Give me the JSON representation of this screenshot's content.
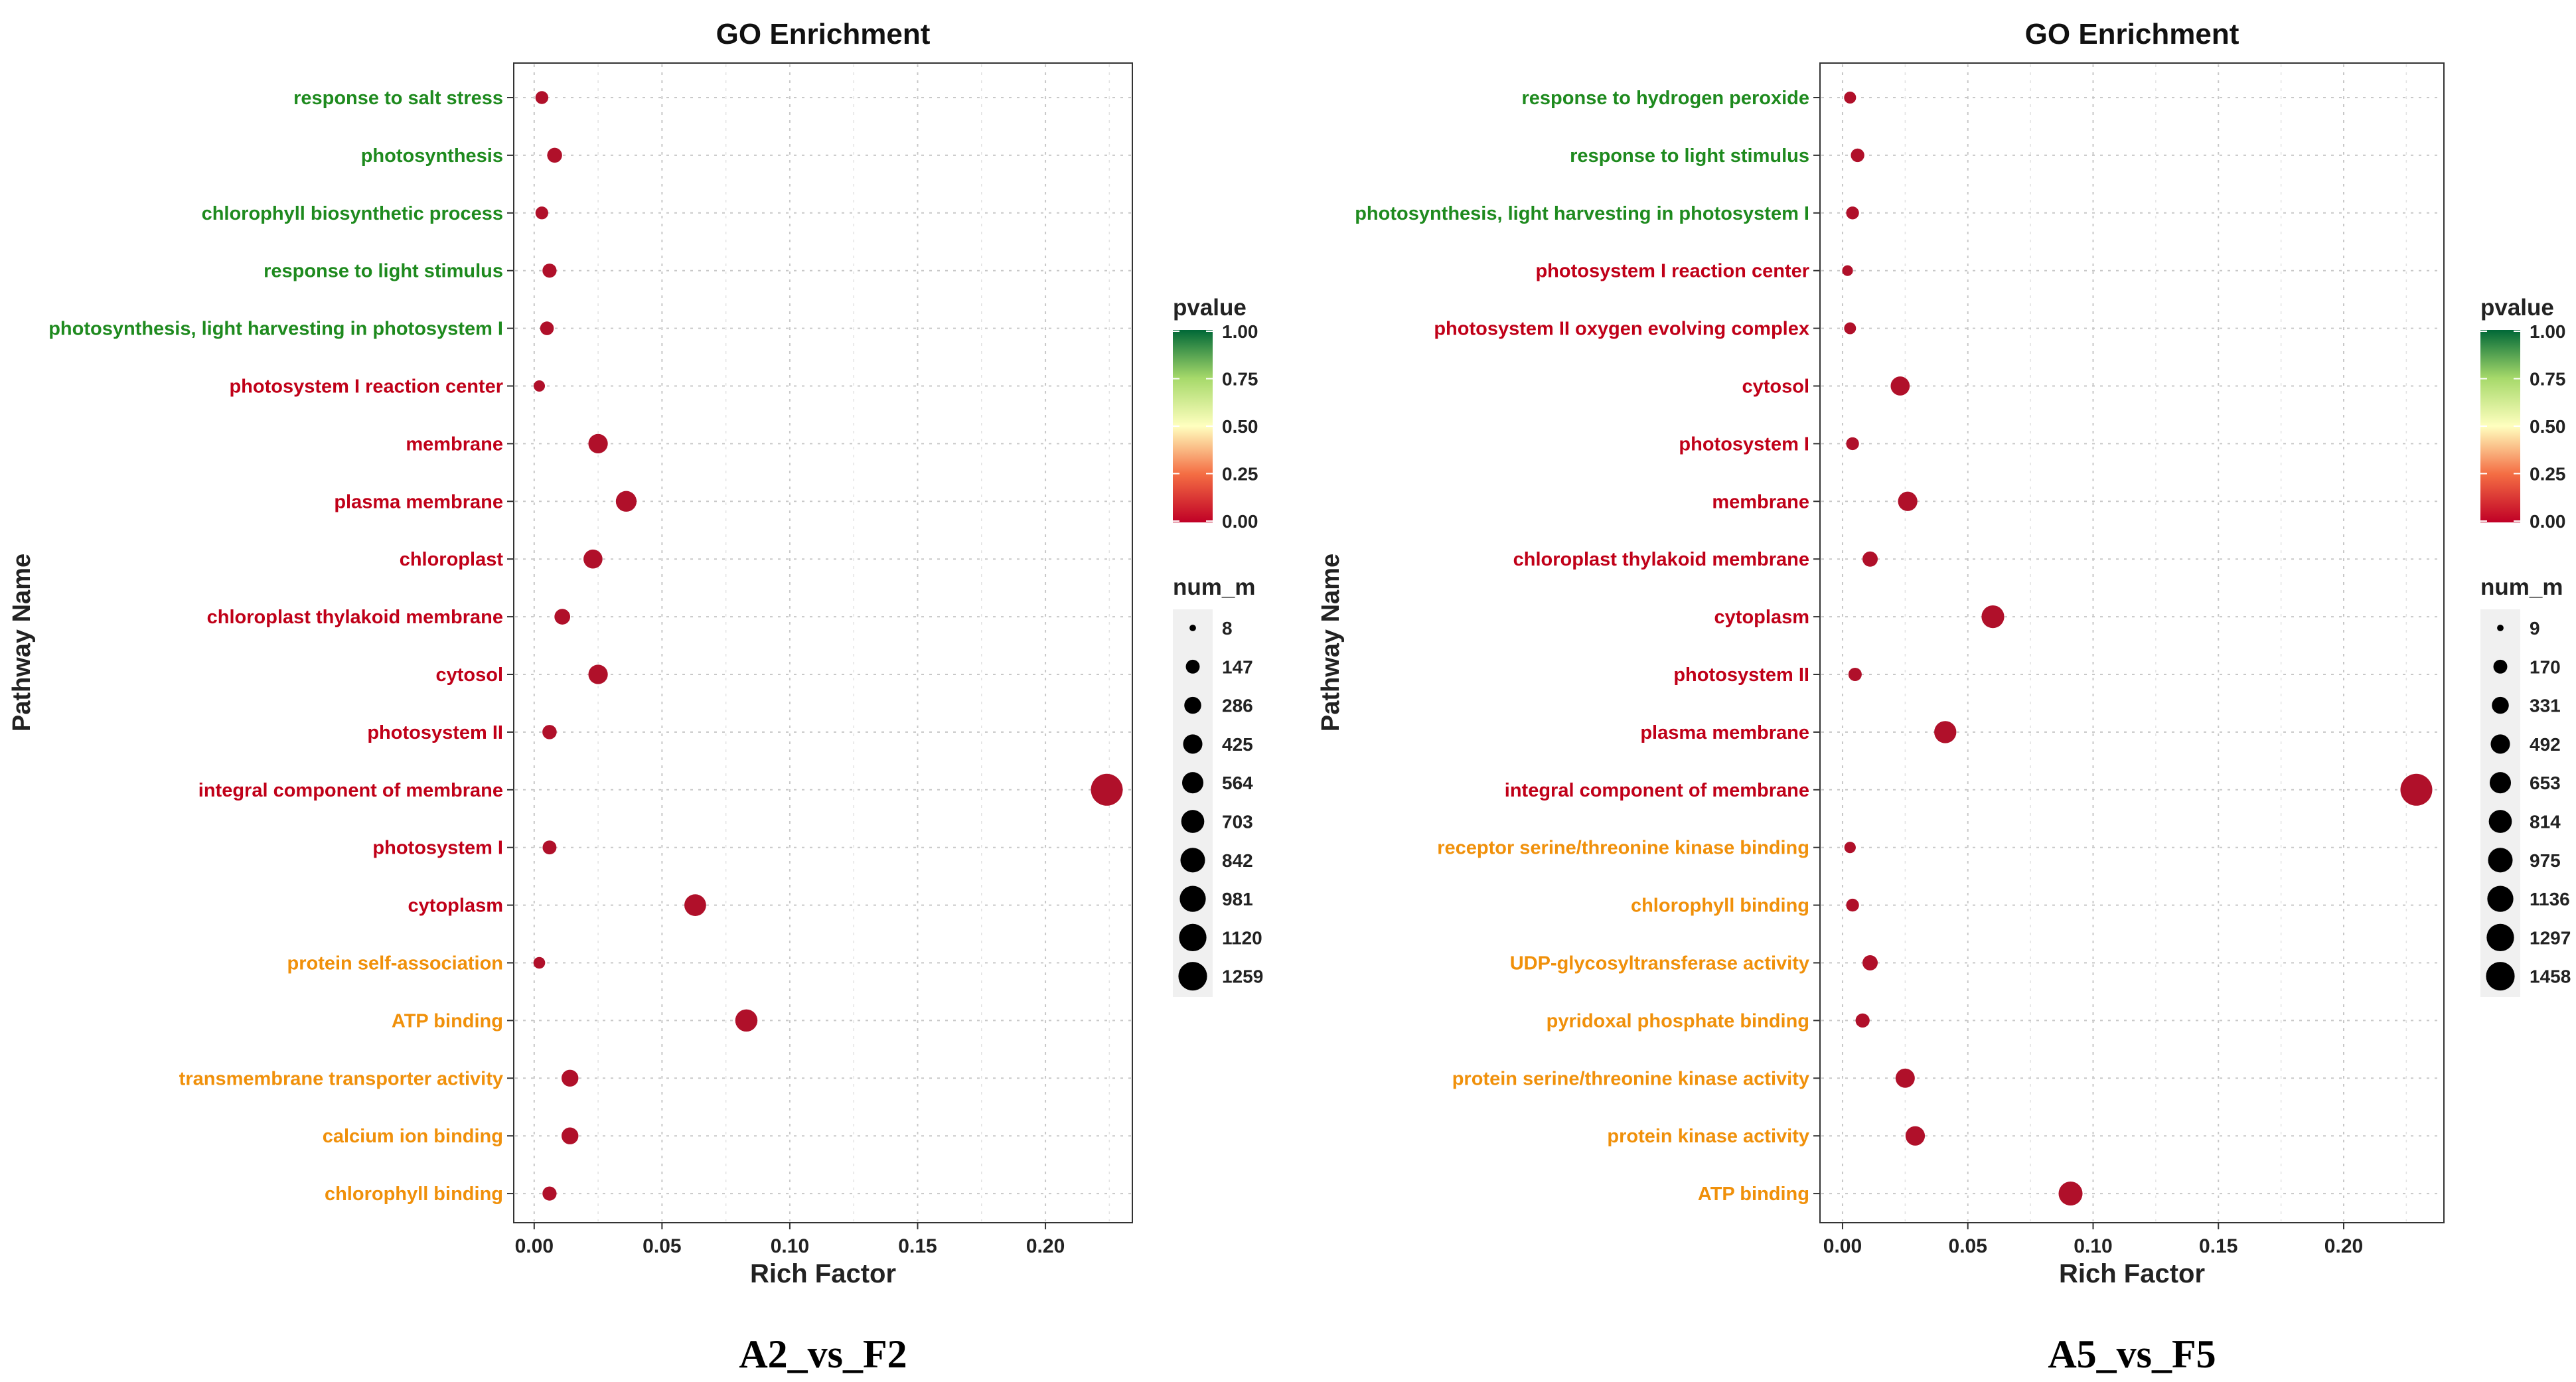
{
  "colors": {
    "label_bp": "#1e8a1e",
    "label_cc": "#c00018",
    "label_mf": "#f0900a",
    "dot": "#b0102a",
    "grid": "#c8c8c8",
    "gradient_top": "#006837",
    "gradient_mid_high": "#a6d96a",
    "gradient_mid": "#ffffbf",
    "gradient_mid_low": "#f46d43",
    "gradient_bottom": "#c00026"
  },
  "chart_data": [
    {
      "type": "scatter",
      "title": "GO Enrichment",
      "xlabel": "Rich Factor",
      "ylabel": "Pathway Name",
      "caption": "A2_vs_F2",
      "xlim": [
        -0.008,
        0.234
      ],
      "x_ticks": [
        0.0,
        0.05,
        0.1,
        0.15,
        0.2
      ],
      "x_tick_labels": [
        "0.00",
        "0.05",
        "0.10",
        "0.15",
        "0.20"
      ],
      "legend_color_title": "pvalue",
      "legend_color_labels": [
        "1.00",
        "0.75",
        "0.50",
        "0.25",
        "0.00"
      ],
      "legend_size_title": "num_m",
      "legend_size_labels": [
        "8",
        "147",
        "286",
        "425",
        "564",
        "703",
        "842",
        "981",
        "1120",
        "1259"
      ],
      "size_range": [
        8,
        1259
      ],
      "categories": [
        "response to salt stress",
        "photosynthesis",
        "chlorophyll biosynthetic process",
        "response to light stimulus",
        "photosynthesis, light harvesting in photosystem I",
        "photosystem I reaction center",
        "membrane",
        "plasma membrane",
        "chloroplast",
        "chloroplast thylakoid membrane",
        "cytosol",
        "photosystem II",
        "integral component of membrane",
        "photosystem I",
        "cytoplasm",
        "protein self-association",
        "ATP binding",
        "transmembrane transporter activity",
        "calcium ion binding",
        "chlorophyll binding"
      ],
      "ontology": [
        "BP",
        "BP",
        "BP",
        "BP",
        "BP",
        "CC",
        "CC",
        "CC",
        "CC",
        "CC",
        "CC",
        "CC",
        "CC",
        "CC",
        "CC",
        "MF",
        "MF",
        "MF",
        "MF",
        "MF"
      ],
      "rich_factor": [
        0.003,
        0.008,
        0.003,
        0.006,
        0.005,
        0.002,
        0.025,
        0.036,
        0.023,
        0.011,
        0.025,
        0.006,
        0.224,
        0.006,
        0.063,
        0.002,
        0.083,
        0.014,
        0.014,
        0.006
      ],
      "num": [
        40,
        85,
        38,
        65,
        55,
        18,
        260,
        330,
        240,
        110,
        260,
        70,
        1259,
        60,
        390,
        22,
        420,
        150,
        150,
        65
      ],
      "pvalue": [
        0.0,
        0.0,
        0.0,
        0.0,
        0.0,
        0.0,
        0.0,
        0.0,
        0.0,
        0.0,
        0.0,
        0.0,
        0.0,
        0.0,
        0.0,
        0.0,
        0.0,
        0.0,
        0.0,
        0.0
      ]
    },
    {
      "type": "scatter",
      "title": "GO Enrichment",
      "xlabel": "Rich Factor",
      "ylabel": "Pathway Name",
      "caption": "A5_vs_F5",
      "xlim": [
        -0.009,
        0.24
      ],
      "x_ticks": [
        0.0,
        0.05,
        0.1,
        0.15,
        0.2
      ],
      "x_tick_labels": [
        "0.00",
        "0.05",
        "0.10",
        "0.15",
        "0.20"
      ],
      "legend_color_title": "pvalue",
      "legend_color_labels": [
        "1.00",
        "0.75",
        "0.50",
        "0.25",
        "0.00"
      ],
      "legend_size_title": "num_m",
      "legend_size_labels": [
        "9",
        "170",
        "331",
        "492",
        "653",
        "814",
        "975",
        "1136",
        "1297",
        "1458"
      ],
      "size_range": [
        9,
        1458
      ],
      "categories": [
        "response to hydrogen peroxide",
        "response to light stimulus",
        "photosynthesis, light harvesting in photosystem I",
        "photosystem I reaction center",
        "photosystem II oxygen evolving complex",
        "cytosol",
        "photosystem I",
        "membrane",
        "chloroplast thylakoid membrane",
        "cytoplasm",
        "photosystem II",
        "plasma membrane",
        "integral component of membrane",
        "receptor serine/threonine kinase binding",
        "chlorophyll binding",
        "UDP-glycosyltransferase activity",
        "pyridoxal phosphate binding",
        "protein serine/threonine kinase activity",
        "protein kinase activity",
        "ATP binding"
      ],
      "ontology": [
        "BP",
        "BP",
        "BP",
        "CC",
        "CC",
        "CC",
        "CC",
        "CC",
        "CC",
        "CC",
        "CC",
        "CC",
        "CC",
        "MF",
        "MF",
        "MF",
        "MF",
        "MF",
        "MF",
        "MF"
      ],
      "rich_factor": [
        0.003,
        0.006,
        0.004,
        0.002,
        0.003,
        0.023,
        0.004,
        0.026,
        0.011,
        0.06,
        0.005,
        0.041,
        0.229,
        0.003,
        0.004,
        0.011,
        0.008,
        0.025,
        0.029,
        0.091
      ],
      "num": [
        30,
        60,
        45,
        15,
        28,
        280,
        45,
        300,
        110,
        520,
        55,
        480,
        1458,
        22,
        45,
        110,
        75,
        290,
        300,
        620
      ],
      "pvalue": [
        0.0,
        0.0,
        0.0,
        0.0,
        0.0,
        0.0,
        0.0,
        0.0,
        0.0,
        0.0,
        0.0,
        0.0,
        0.0,
        0.0,
        0.0,
        0.0,
        0.0,
        0.0,
        0.0,
        0.0
      ]
    }
  ]
}
